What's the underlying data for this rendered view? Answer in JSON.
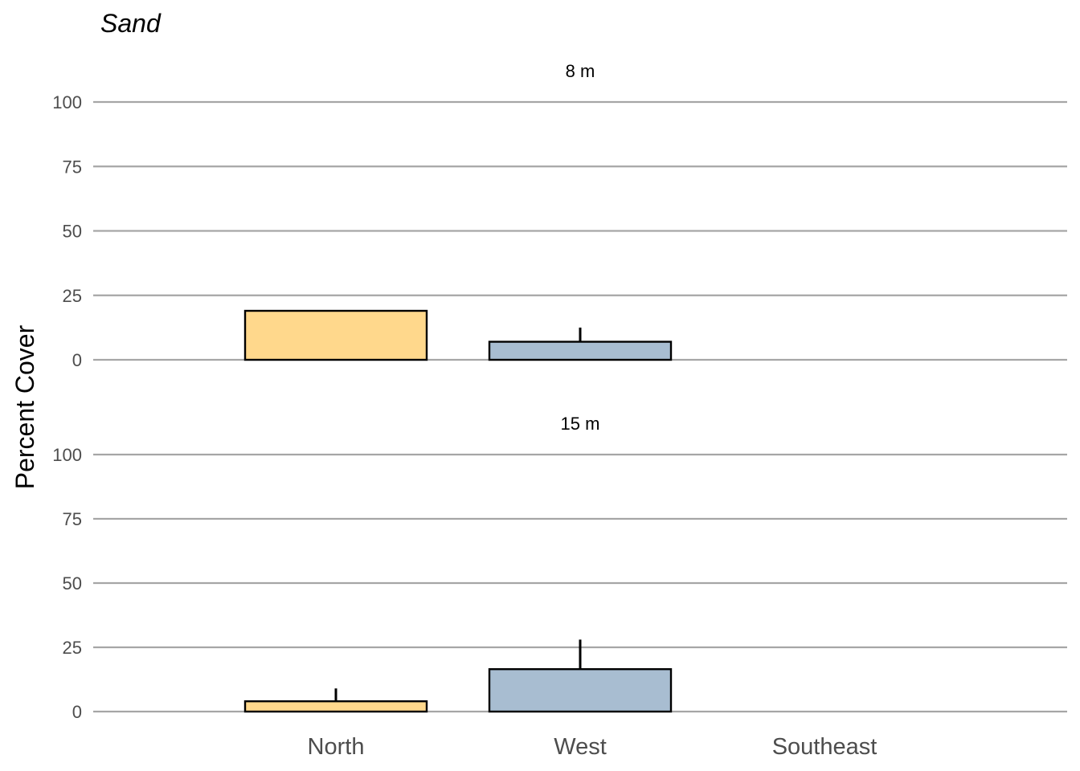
{
  "chart_data": {
    "type": "bar",
    "title": "Sand",
    "ylabel": "Percent Cover",
    "xlabel": "",
    "ylim": [
      0,
      100
    ],
    "yticks": [
      0,
      25,
      50,
      75,
      100
    ],
    "categories": [
      "North",
      "West",
      "Southeast"
    ],
    "grid": true,
    "bar_colors": [
      "#FFD88C",
      "#A8BDD1",
      "#A8BDD1"
    ],
    "panels": [
      {
        "label": "8 m",
        "values": [
          19,
          7,
          0
        ],
        "error_upper": [
          19,
          12.5,
          0
        ]
      },
      {
        "label": "15 m",
        "values": [
          4,
          16.5,
          0
        ],
        "error_upper": [
          9,
          28,
          0
        ]
      }
    ]
  }
}
